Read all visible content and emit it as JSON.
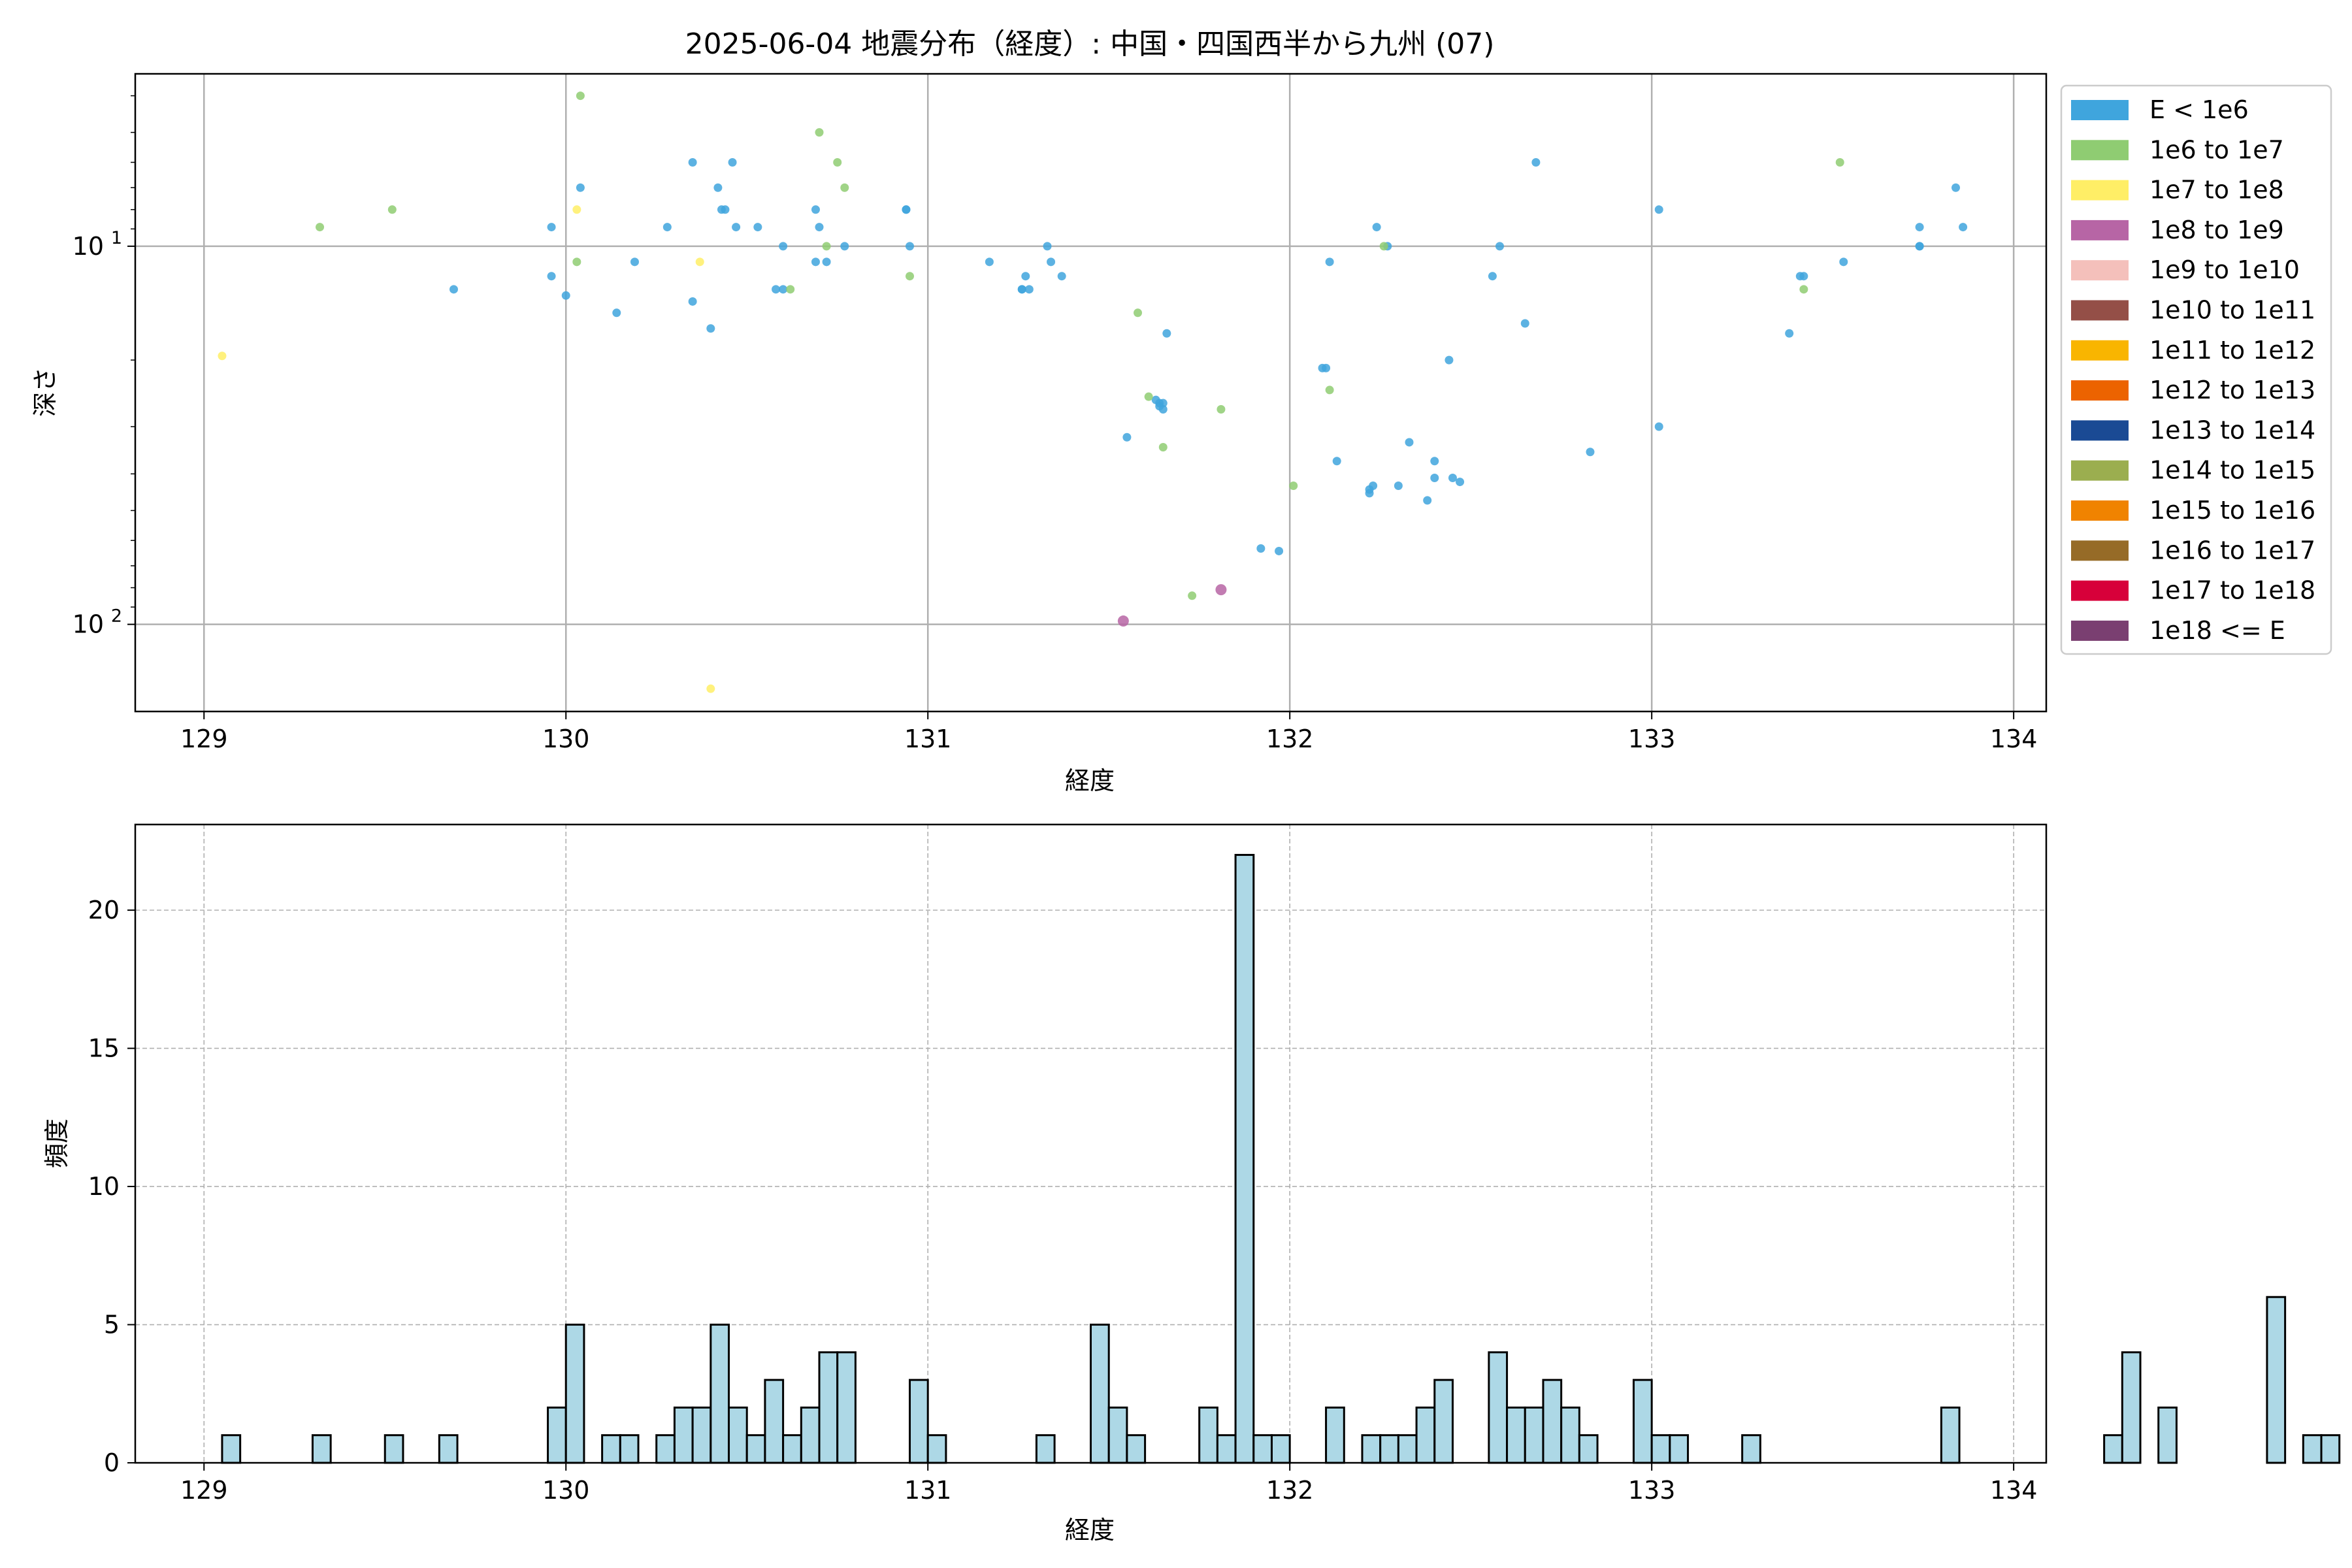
{
  "figure": {
    "background": "#ffffff"
  },
  "chart_data": [
    {
      "type": "scatter",
      "title": "2025-06-04 地震分布（経度）: 中国・四国西半から九州 (07)",
      "xlabel": "経度",
      "ylabel": "深さ",
      "xlim": [
        128.81,
        134.09
      ],
      "x_ticks": [
        129,
        130,
        131,
        132,
        133,
        134
      ],
      "y_scale": "log",
      "y_inverted": true,
      "ylim": [
        3.5,
        170
      ],
      "y_ticks": [
        {
          "value": 10,
          "label": "10",
          "sup": "1"
        },
        {
          "value": 100,
          "label": "10",
          "sup": "2"
        }
      ],
      "grid": true,
      "legend": {
        "position": "outside-right",
        "entries": [
          {
            "label": "E < 1e6",
            "color": "#3fa5dd"
          },
          {
            "label": "1e6 to 1e7",
            "color": "#8fcc72"
          },
          {
            "label": "1e7 to 1e8",
            "color": "#ffee66"
          },
          {
            "label": "1e8 to 1e9",
            "color": "#b765a5"
          },
          {
            "label": "1e9 to 1e10",
            "color": "#f4c0bb"
          },
          {
            "label": "1e10 to 1e11",
            "color": "#944f47"
          },
          {
            "label": "1e11 to 1e12",
            "color": "#f9b500"
          },
          {
            "label": "1e12 to 1e13",
            "color": "#ec6300"
          },
          {
            "label": "1e13 to 1e14",
            "color": "#1a4a94"
          },
          {
            "label": "1e14 to 1e15",
            "color": "#9bae4f"
          },
          {
            "label": "1e15 to 1e16",
            "color": "#f08300"
          },
          {
            "label": "1e16 to 1e17",
            "color": "#966b27"
          },
          {
            "label": "1e17 to 1e18",
            "color": "#d7003a"
          },
          {
            "label": "1e18 <= E",
            "color": "#7a3f71"
          }
        ]
      },
      "series": [
        {
          "class_index": 0,
          "points": [
            [
              129.69,
              13
            ],
            [
              129.96,
              8.9
            ],
            [
              129.96,
              12
            ],
            [
              130.0,
              13.5
            ],
            [
              130.04,
              7
            ],
            [
              130.14,
              15
            ],
            [
              130.19,
              11
            ],
            [
              130.28,
              8.9
            ],
            [
              130.35,
              6
            ],
            [
              130.35,
              14
            ],
            [
              130.4,
              16.5
            ],
            [
              130.42,
              7
            ],
            [
              130.43,
              8
            ],
            [
              130.44,
              8
            ],
            [
              130.46,
              6
            ],
            [
              130.47,
              8.9
            ],
            [
              130.53,
              8.9
            ],
            [
              130.58,
              13
            ],
            [
              130.6,
              10
            ],
            [
              130.6,
              13
            ],
            [
              130.69,
              8
            ],
            [
              130.69,
              11
            ],
            [
              130.7,
              8.9
            ],
            [
              130.72,
              11
            ],
            [
              130.77,
              10
            ],
            [
              130.94,
              8
            ],
            [
              130.94,
              8
            ],
            [
              130.95,
              10
            ],
            [
              131.17,
              11
            ],
            [
              131.26,
              13
            ],
            [
              131.26,
              13
            ],
            [
              131.27,
              12
            ],
            [
              131.28,
              13
            ],
            [
              131.33,
              10
            ],
            [
              131.34,
              11
            ],
            [
              131.37,
              12
            ],
            [
              131.55,
              32
            ],
            [
              131.63,
              25.5
            ],
            [
              131.64,
              26
            ],
            [
              131.64,
              26.5
            ],
            [
              131.65,
              26
            ],
            [
              131.65,
              27
            ],
            [
              131.66,
              17
            ],
            [
              131.92,
              63
            ],
            [
              131.97,
              64
            ],
            [
              132.09,
              21
            ],
            [
              132.1,
              21
            ],
            [
              132.11,
              11
            ],
            [
              132.13,
              37
            ],
            [
              132.22,
              45
            ],
            [
              132.22,
              44
            ],
            [
              132.23,
              43
            ],
            [
              132.24,
              8.9
            ],
            [
              132.27,
              10
            ],
            [
              132.3,
              43
            ],
            [
              132.33,
              33
            ],
            [
              132.38,
              47
            ],
            [
              132.4,
              41
            ],
            [
              132.4,
              37
            ],
            [
              132.44,
              20
            ],
            [
              132.45,
              41
            ],
            [
              132.47,
              42
            ],
            [
              132.56,
              12
            ],
            [
              132.58,
              10
            ],
            [
              132.65,
              16
            ],
            [
              132.68,
              6
            ],
            [
              132.83,
              35
            ],
            [
              133.02,
              30
            ],
            [
              133.02,
              8
            ],
            [
              133.38,
              17
            ],
            [
              133.41,
              12
            ],
            [
              133.42,
              12
            ],
            [
              133.53,
              11
            ],
            [
              133.74,
              8.9
            ],
            [
              133.74,
              10
            ],
            [
              133.74,
              10
            ],
            [
              133.84,
              7
            ],
            [
              133.86,
              8.9
            ]
          ]
        },
        {
          "class_index": 1,
          "points": [
            [
              129.32,
              8.9
            ],
            [
              129.52,
              8
            ],
            [
              130.03,
              11
            ],
            [
              130.04,
              4
            ],
            [
              130.62,
              13
            ],
            [
              130.7,
              5
            ],
            [
              130.72,
              10
            ],
            [
              130.75,
              6
            ],
            [
              130.77,
              7
            ],
            [
              130.95,
              12
            ],
            [
              131.58,
              15
            ],
            [
              131.61,
              25
            ],
            [
              131.65,
              34
            ],
            [
              131.73,
              84
            ],
            [
              131.81,
              27
            ],
            [
              132.01,
              43
            ],
            [
              132.11,
              24
            ],
            [
              132.26,
              10
            ],
            [
              133.42,
              13
            ],
            [
              133.52,
              6
            ]
          ]
        },
        {
          "class_index": 2,
          "points": [
            [
              129.05,
              19.5
            ],
            [
              130.03,
              8
            ],
            [
              130.37,
              11
            ],
            [
              130.4,
              148
            ]
          ]
        },
        {
          "class_index": 3,
          "points": [
            [
              131.54,
              98
            ],
            [
              131.81,
              81
            ]
          ]
        }
      ]
    },
    {
      "type": "bar",
      "xlabel": "経度",
      "ylabel": "頻度",
      "xlim": [
        128.81,
        134.09
      ],
      "ylim": [
        0,
        23.1
      ],
      "x_ticks": [
        129,
        130,
        131,
        132,
        133,
        134
      ],
      "y_ticks": [
        0,
        5,
        10,
        15,
        20
      ],
      "grid": true,
      "bar_color": "#add8e6",
      "edge_color": "#000000",
      "bin_start": 129.0,
      "bin_width": 0.05,
      "values": [
        0,
        1,
        0,
        0,
        0,
        0,
        1,
        0,
        0,
        0,
        1,
        0,
        0,
        1,
        0,
        0,
        0,
        0,
        0,
        2,
        5,
        0,
        1,
        1,
        0,
        1,
        2,
        2,
        5,
        2,
        1,
        3,
        1,
        2,
        4,
        4,
        0,
        0,
        0,
        3,
        1,
        0,
        0,
        0,
        0,
        0,
        1,
        0,
        0,
        5,
        2,
        1,
        0,
        0,
        0,
        2,
        1,
        22,
        1,
        1,
        0,
        0,
        2,
        0,
        1,
        1,
        1,
        2,
        3,
        0,
        0,
        4,
        2,
        2,
        3,
        2,
        1,
        0,
        0,
        3,
        1,
        1,
        0,
        0,
        0,
        1,
        0,
        0,
        0,
        0,
        0,
        0,
        0,
        0,
        0,
        0,
        2,
        0,
        0,
        0,
        0,
        0,
        0,
        0,
        0,
        1,
        4,
        0,
        2,
        0,
        0,
        0,
        0,
        0,
        6,
        0,
        1,
        1
      ]
    }
  ]
}
